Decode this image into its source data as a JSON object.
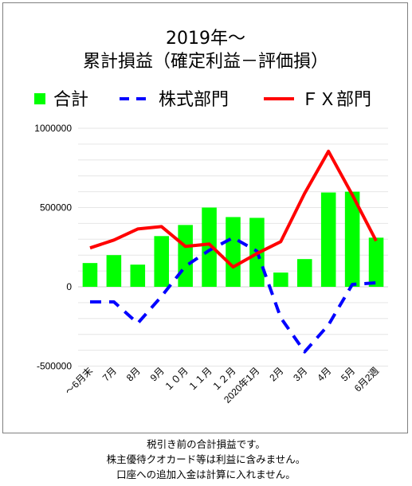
{
  "chart_data": {
    "type": "bar",
    "title": [
      "2019年～",
      "累計損益（確定利益－評価損）"
    ],
    "categories": [
      "～6月末",
      "7月",
      "8月",
      "9月",
      "１０月",
      "１１月",
      "１２月",
      "2020年1月",
      "2月",
      "3月",
      "4月",
      "5月",
      "6月2週"
    ],
    "series": [
      {
        "name": "合計",
        "kind": "bar",
        "color": "#00ff00",
        "values": [
          150000,
          200000,
          140000,
          320000,
          390000,
          500000,
          440000,
          435000,
          90000,
          175000,
          595000,
          600000,
          310000
        ]
      },
      {
        "name": "株式部門",
        "kind": "line",
        "style": "dashed",
        "color": "#0000ff",
        "values": [
          -95000,
          -95000,
          -230000,
          -60000,
          130000,
          230000,
          310000,
          225000,
          -195000,
          -410000,
          -240000,
          15000,
          25000
        ]
      },
      {
        "name": "ＦＸ部門",
        "kind": "line",
        "style": "solid",
        "color": "#ff0000",
        "values": [
          245000,
          295000,
          365000,
          380000,
          255000,
          270000,
          125000,
          210000,
          285000,
          590000,
          855000,
          580000,
          290000
        ]
      }
    ],
    "yticks": [
      "1000000",
      "500000",
      "0",
      "-500000"
    ],
    "ylim": [
      -500000,
      1000000
    ],
    "grid": true,
    "legend": "top"
  },
  "notes": [
    "税引き前の合計損益です。",
    "株主優待クオカード等は利益に含みません。",
    "口座への追加入金は計算に入れません。"
  ]
}
